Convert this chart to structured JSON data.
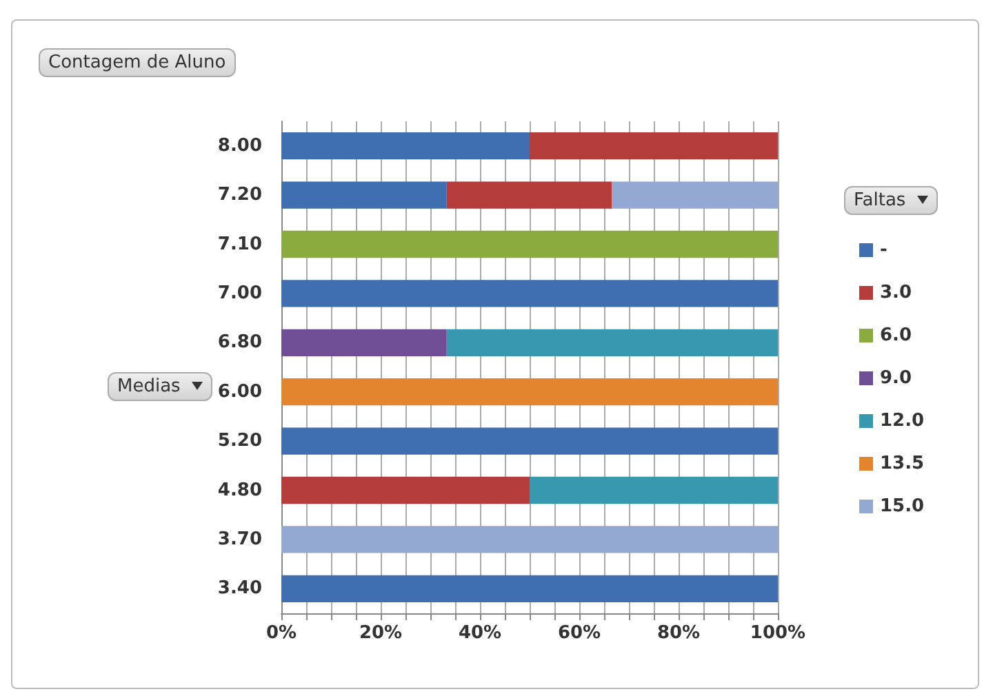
{
  "chart_data": {
    "type": "bar",
    "orientation": "horizontal",
    "stacked": true,
    "title": "Contagem de Aluno",
    "ylabel": "Medias",
    "legend_title": "Faltas",
    "legend": "right",
    "grid": "x",
    "categories": [
      "8.00",
      "7.20",
      "7.10",
      "7.00",
      "6.80",
      "6.00",
      "5.20",
      "4.80",
      "3.70",
      "3.40"
    ],
    "xlim": [
      0,
      100
    ],
    "xticks": [
      {
        "value": 0,
        "label": "0%"
      },
      {
        "value": 5,
        "label": null
      },
      {
        "value": 10,
        "label": null
      },
      {
        "value": 15,
        "label": null
      },
      {
        "value": 20,
        "label": "20%"
      },
      {
        "value": 25,
        "label": null
      },
      {
        "value": 30,
        "label": null
      },
      {
        "value": 35,
        "label": null
      },
      {
        "value": 40,
        "label": "40%"
      },
      {
        "value": 45,
        "label": null
      },
      {
        "value": 50,
        "label": null
      },
      {
        "value": 55,
        "label": null
      },
      {
        "value": 60,
        "label": "60%"
      },
      {
        "value": 65,
        "label": null
      },
      {
        "value": 70,
        "label": null
      },
      {
        "value": 75,
        "label": null
      },
      {
        "value": 80,
        "label": "80%"
      },
      {
        "value": 85,
        "label": null
      },
      {
        "value": 90,
        "label": null
      },
      {
        "value": 95,
        "label": null
      },
      {
        "value": 100,
        "label": "100%"
      }
    ],
    "series": [
      {
        "name": "-",
        "color": "#3f6fb0",
        "values": [
          50,
          33.3,
          null,
          100,
          null,
          null,
          100,
          null,
          null,
          100
        ]
      },
      {
        "name": "3.0",
        "color": "#b43c3a",
        "values": [
          50,
          33.3,
          null,
          null,
          null,
          null,
          null,
          50,
          null,
          null
        ]
      },
      {
        "name": "6.0",
        "color": "#8aac3e",
        "values": [
          null,
          null,
          100,
          null,
          null,
          null,
          null,
          null,
          null,
          null
        ]
      },
      {
        "name": "9.0",
        "color": "#6f4e96",
        "values": [
          null,
          null,
          null,
          null,
          33.3,
          null,
          null,
          null,
          null,
          null
        ]
      },
      {
        "name": "12.0",
        "color": "#3899ae",
        "values": [
          null,
          null,
          null,
          null,
          66.7,
          null,
          null,
          50,
          null,
          null
        ]
      },
      {
        "name": "13.5",
        "color": "#e2852e",
        "values": [
          null,
          null,
          null,
          null,
          null,
          100,
          null,
          null,
          null,
          null
        ]
      },
      {
        "name": "15.0",
        "color": "#93a9d1",
        "values": [
          null,
          33.4,
          null,
          null,
          null,
          null,
          null,
          null,
          100,
          null
        ]
      }
    ]
  }
}
